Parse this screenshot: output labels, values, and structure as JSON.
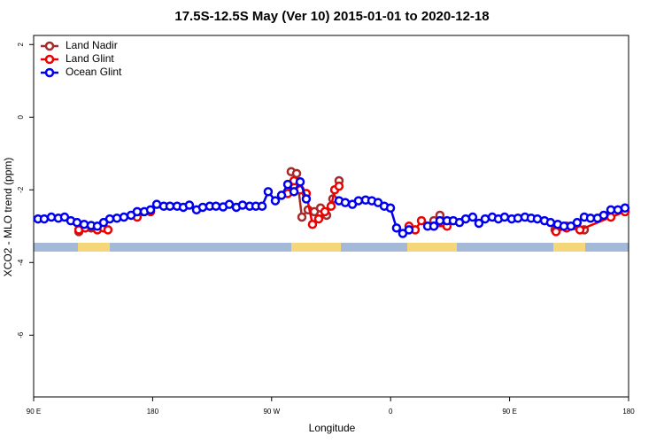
{
  "chart_data": {
    "type": "line",
    "title": "17.5S-12.5S May (Ver 10)   2015-01-01 to 2020-12-18",
    "xlabel": "Longitude",
    "ylabel": "XCO2 - MLO trend (ppm)",
    "xlim": [
      90,
      540
    ],
    "ylim": [
      -7.7,
      2.25
    ],
    "xticks": [
      {
        "value": 90,
        "label": "90 E"
      },
      180,
      {
        "value": 270,
        "label": "90 W"
      },
      {
        "value": 360,
        "label": "0"
      },
      {
        "value": 450,
        "label": "90 E"
      },
      {
        "value": 540,
        "label": "180"
      }
    ],
    "yticks": [
      2,
      0,
      -2,
      -4,
      -6
    ],
    "legend": "top-left",
    "series": [
      {
        "name": "Land Nadir",
        "color": "#a52a2a",
        "x": [
          124.2,
          128.8,
          133.5,
          null,
          284.8,
          288.9,
          292.9,
          297.6,
          302.3,
          307,
          311.6,
          316.3,
          321,
          null,
          392.7,
          397.3,
          null,
          484.4,
          493.1,
          506.5
        ],
        "values": [
          -3.15,
          -3.0,
          -3.05,
          null,
          -1.5,
          -1.55,
          -2.75,
          -2.55,
          -2.6,
          -2.5,
          -2.7,
          -2.25,
          -1.75,
          null,
          -2.85,
          -2.7,
          null,
          -3.1,
          -3.0,
          -3.1
        ]
      },
      {
        "name": "Land Glint",
        "color": "#ee0000",
        "x": [
          124.2,
          129,
          133.5,
          138.2,
          142.9,
          146.2,
          null,
          168.3,
          178.4,
          null,
          282.2,
          286.9,
          291.6,
          296.2,
          300.9,
          305.6,
          310.3,
          315,
          317.7,
          321,
          null,
          373.9,
          378.6,
          383.3,
          392.7,
          402.7,
          null,
          485.1,
          493.1,
          503.2,
          526.6,
          537.3
        ],
        "values": [
          -3.1,
          -3.05,
          -3.0,
          -3.1,
          -3.05,
          -3.1,
          null,
          -2.75,
          -2.6,
          null,
          -2.1,
          -1.75,
          -2.0,
          -2.1,
          -2.95,
          -2.8,
          -2.6,
          -2.45,
          -2.0,
          -1.9,
          null,
          -3.0,
          -3.1,
          -2.85,
          -3.0,
          -3.0,
          null,
          -3.15,
          -3.05,
          -3.1,
          -2.75,
          -2.6
        ]
      },
      {
        "name": "Ocean Glint",
        "color": "#0000ee",
        "x": [
          93.3,
          98,
          103.4,
          108.7,
          113.4,
          118.1,
          122.8,
          128.2,
          133.5,
          138.2,
          142.9,
          147.6,
          153,
          158.3,
          163.7,
          168.3,
          173.7,
          178.4,
          183.1,
          188.4,
          193.1,
          198.5,
          203.2,
          207.8,
          213.2,
          217.9,
          223.2,
          227.9,
          233.3,
          238,
          243.3,
          248,
          253.4,
          258.1,
          262.8,
          267.4,
          272.8,
          277.5,
          282.2,
          286.9,
          291.6,
          296.2,
          null,
          321,
          325.7,
          331.1,
          335.7,
          341.1,
          345.8,
          350.5,
          355.2,
          359.9,
          364.5,
          369.2,
          373.9,
          null,
          388,
          392.7,
          397.3,
          402.7,
          407.4,
          412.1,
          416.8,
          422.1,
          426.8,
          431.5,
          436.9,
          441.5,
          446.2,
          451.6,
          456.3,
          461.6,
          466.3,
          471,
          476.4,
          481,
          486.4,
          491.1,
          496.4,
          501.1,
          506.5,
          511.2,
          516.5,
          521.2,
          526.6,
          531.9,
          537.3
        ],
        "values": [
          -2.8,
          -2.8,
          -2.75,
          -2.78,
          -2.75,
          -2.85,
          -2.9,
          -2.95,
          -2.98,
          -3.0,
          -2.9,
          -2.8,
          -2.78,
          -2.75,
          -2.7,
          -2.6,
          -2.6,
          -2.55,
          -2.4,
          -2.45,
          -2.45,
          -2.45,
          -2.48,
          -2.42,
          -2.55,
          -2.48,
          -2.45,
          -2.45,
          -2.47,
          -2.4,
          -2.48,
          -2.42,
          -2.45,
          -2.45,
          -2.45,
          -2.05,
          -2.3,
          -2.15,
          -1.85,
          -2.05,
          -1.78,
          -2.25,
          null,
          -2.3,
          -2.35,
          -2.4,
          -2.3,
          -2.28,
          -2.3,
          -2.35,
          -2.45,
          -2.5,
          -3.05,
          -3.2,
          -3.1,
          null,
          -3.0,
          -3.0,
          -2.85,
          -2.85,
          -2.85,
          -2.9,
          -2.8,
          -2.75,
          -2.92,
          -2.8,
          -2.75,
          -2.8,
          -2.75,
          -2.8,
          -2.78,
          -2.75,
          -2.78,
          -2.8,
          -2.85,
          -2.9,
          -2.95,
          -3.0,
          -3.0,
          -2.9,
          -2.75,
          -2.78,
          -2.78,
          -2.7,
          -2.55,
          -2.55,
          -2.5
        ]
      }
    ]
  }
}
